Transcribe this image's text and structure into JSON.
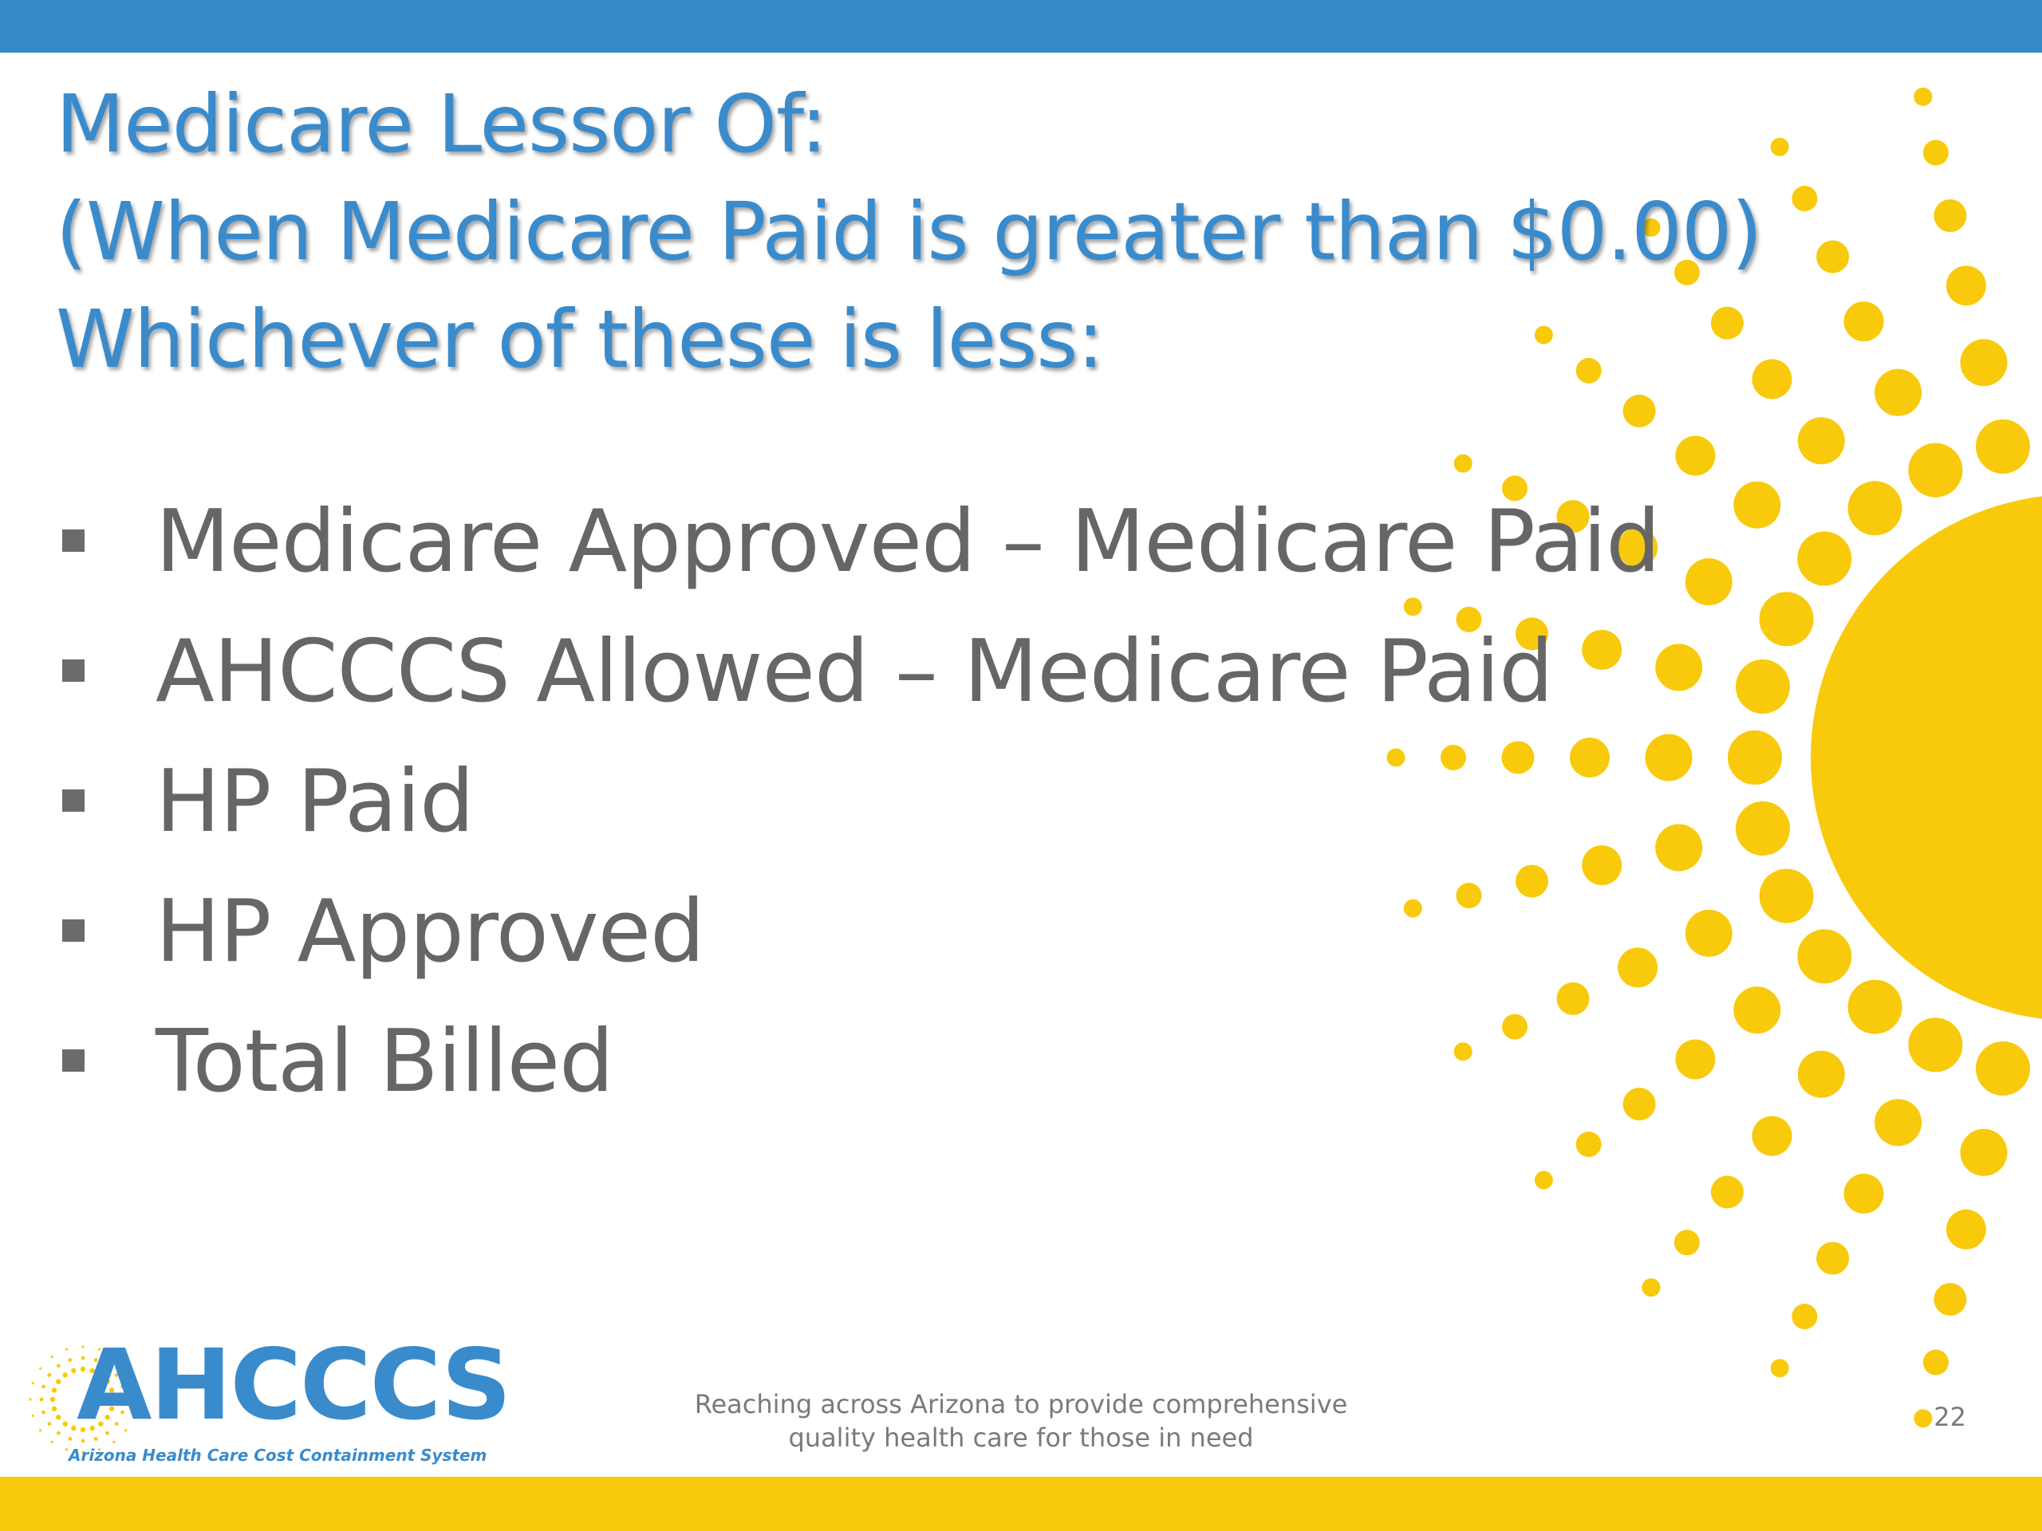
{
  "slide": {
    "title_lines": [
      "Medicare Lessor Of:",
      "(When Medicare Paid is greater than $0.00)",
      "Whichever of these is less:"
    ],
    "bullets": [
      "Medicare Approved – Medicare Paid",
      "AHCCCS Allowed – Medicare Paid",
      "HP Paid",
      "HP Approved",
      "Total Billed"
    ]
  },
  "footer": {
    "logo_text": "AHCCCS",
    "logo_subtitle": "Arizona Health Care Cost Containment System",
    "tagline_lines": [
      "Reaching across Arizona to provide comprehensive",
      "quality health care for those in need"
    ],
    "page_number": "22"
  },
  "colors": {
    "top_bar": "#3689c9",
    "bottom_bar": "#f8ca0b",
    "title": "#3a8bcc",
    "bullet_text": "#666666",
    "sun": "#f8ca0b"
  }
}
